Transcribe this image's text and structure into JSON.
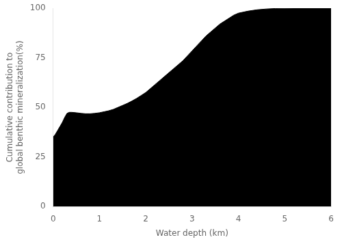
{
  "chart_data": {
    "type": "area",
    "xlabel": "Water depth (km)",
    "ylabel": "Cumulative contribution to\nglobal benthic mineralization(%)",
    "x": [
      0,
      0.05,
      0.1,
      0.15,
      0.2,
      0.25,
      0.3,
      0.35,
      0.4,
      0.5,
      0.6,
      0.7,
      0.8,
      0.9,
      1.0,
      1.1,
      1.2,
      1.3,
      1.4,
      1.5,
      1.6,
      1.7,
      1.8,
      1.9,
      2.0,
      2.1,
      2.2,
      2.3,
      2.4,
      2.5,
      2.6,
      2.7,
      2.8,
      2.9,
      3.0,
      3.1,
      3.2,
      3.3,
      3.4,
      3.5,
      3.6,
      3.7,
      3.8,
      3.9,
      4.0,
      4.2,
      4.4,
      4.6,
      4.8,
      5.0,
      5.2,
      5.4,
      5.6,
      5.8,
      6.0
    ],
    "values": [
      35,
      36.5,
      38.5,
      40.5,
      42.5,
      45,
      47,
      47.5,
      47.5,
      47.3,
      47.0,
      46.8,
      46.8,
      47.0,
      47.3,
      47.8,
      48.3,
      49.0,
      50.0,
      51.0,
      52.0,
      53.2,
      54.5,
      56.0,
      57.5,
      59.5,
      61.5,
      63.5,
      65.5,
      67.5,
      69.5,
      71.5,
      73.5,
      76.0,
      78.5,
      81.0,
      83.5,
      86.0,
      88.0,
      90.0,
      92.0,
      93.5,
      95.0,
      96.5,
      97.5,
      98.5,
      99.2,
      99.6,
      99.85,
      99.95,
      99.98,
      99.99,
      100.0,
      100.0,
      100.0
    ],
    "color": "#000000",
    "xlim": [
      0,
      6
    ],
    "ylim": [
      0,
      100
    ],
    "xticks": [
      0,
      1,
      2,
      3,
      4,
      5,
      6
    ],
    "yticks": [
      0,
      25,
      50,
      75,
      100
    ],
    "grid": false
  }
}
